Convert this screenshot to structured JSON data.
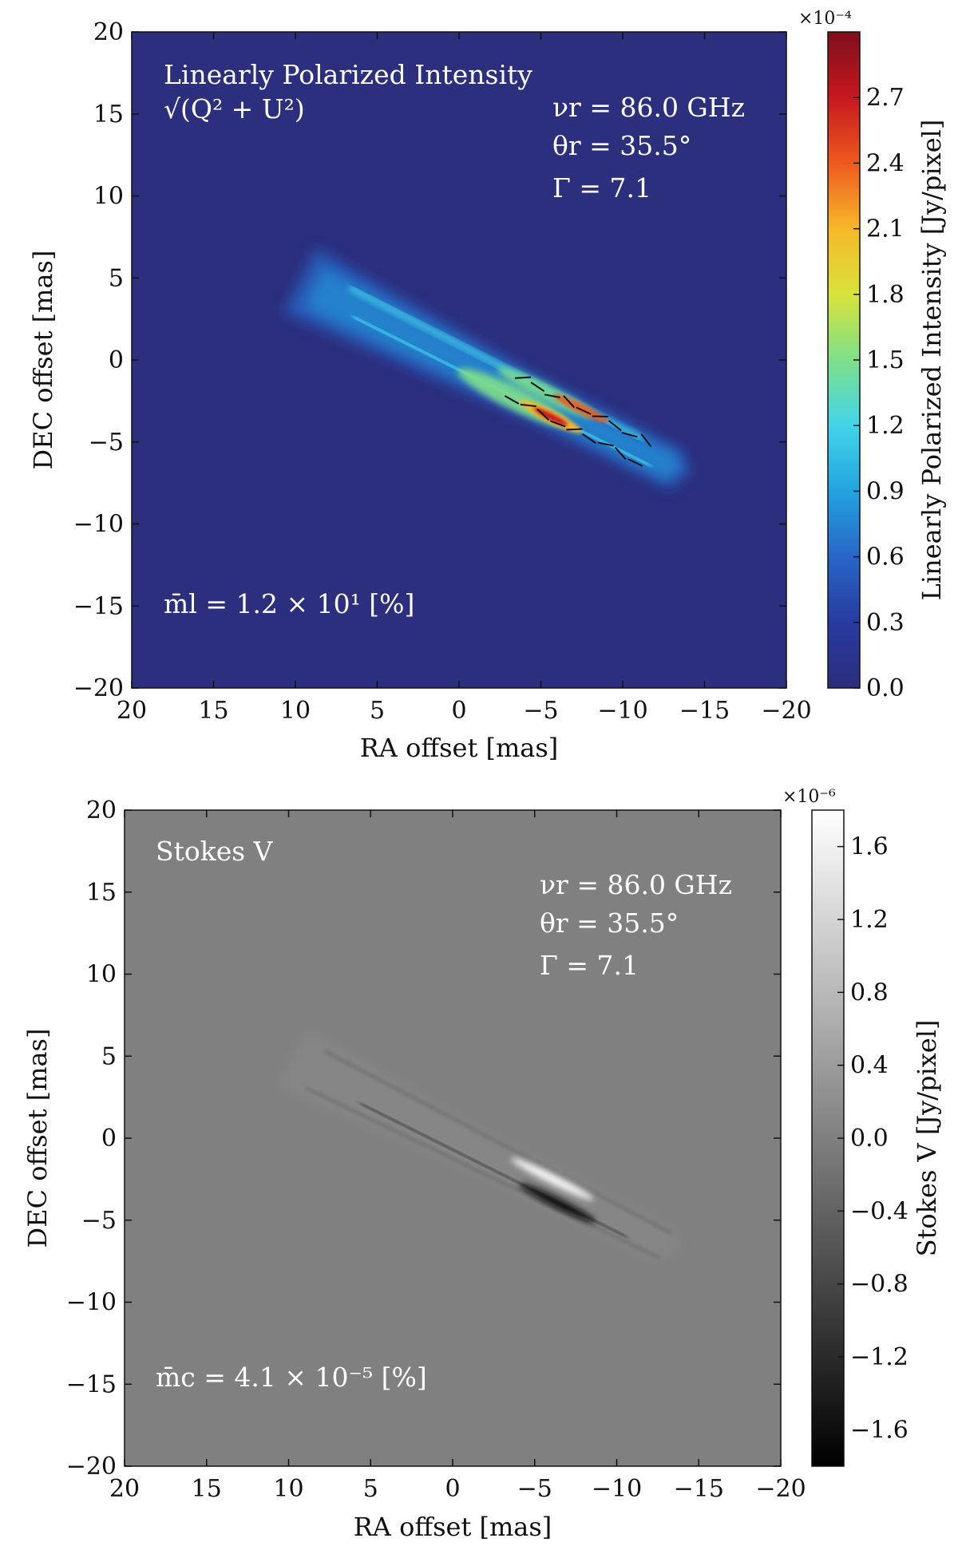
{
  "chart_data": [
    {
      "type": "heatmap",
      "title": "Linearly Polarized Intensity",
      "formula": "√(Q² + U²)",
      "xlabel": "RA offset [mas]",
      "ylabel": "DEC offset [mas]",
      "xlim": [
        20,
        -20
      ],
      "ylim": [
        -20,
        20
      ],
      "x_ticks": [
        "20",
        "15",
        "10",
        "5",
        "0",
        "−5",
        "−10",
        "−15",
        "−20"
      ],
      "y_ticks": [
        "20",
        "15",
        "10",
        "5",
        "0",
        "−5",
        "−10",
        "−15",
        "−20"
      ],
      "annotations": {
        "nu": "νr = 86.0 GHz",
        "theta": "θr = 35.5°",
        "gamma": "Γ = 7.1",
        "mean_frac": "m̄l =  1.2 × 10¹ [%]"
      },
      "colorbar": {
        "label": "Linearly Polarized Intensity [Jy/pixel]",
        "multiplier": "×10⁻⁴",
        "range": [
          0.0,
          3.0
        ],
        "ticks": [
          "0.0",
          "0.3",
          "0.6",
          "0.9",
          "1.2",
          "1.5",
          "1.8",
          "2.1",
          "2.4",
          "2.7"
        ],
        "colormap": "jet",
        "colors": [
          "#2c2e7c",
          "#283b9f",
          "#2866c8",
          "#24a3e0",
          "#42d4ea",
          "#7fdf8a",
          "#d8e33a",
          "#f7b82a",
          "#ee5a1f",
          "#c6181f",
          "#7e0f1c"
        ]
      },
      "background_color": "#2c2f7e",
      "jet_path": [
        [
          8,
          4
        ],
        [
          -13,
          -6.5
        ]
      ]
    },
    {
      "type": "heatmap",
      "title": "Stokes V",
      "xlabel": "RA offset [mas]",
      "ylabel": "DEC offset [mas]",
      "xlim": [
        20,
        -20
      ],
      "ylim": [
        -20,
        20
      ],
      "x_ticks": [
        "20",
        "15",
        "10",
        "5",
        "0",
        "−5",
        "−10",
        "−15",
        "−20"
      ],
      "y_ticks": [
        "20",
        "15",
        "10",
        "5",
        "0",
        "−5",
        "−10",
        "−15",
        "−20"
      ],
      "annotations": {
        "nu": "νr = 86.0 GHz",
        "theta": "θr = 35.5°",
        "gamma": "Γ = 7.1",
        "mean_frac": "m̄c =  4.1 × 10⁻⁵ [%]"
      },
      "colorbar": {
        "label": "Stokes V [Jy/pixel]",
        "multiplier": "×10⁻⁶",
        "range": [
          -1.8,
          1.8
        ],
        "ticks": [
          "−1.6",
          "−1.2",
          "−0.8",
          "−0.4",
          "0.0",
          "0.4",
          "0.8",
          "1.2",
          "1.6"
        ],
        "colormap": "gray",
        "colors": [
          "#000000",
          "#ffffff"
        ]
      },
      "background_color": "#808080",
      "jet_path": [
        [
          8,
          4
        ],
        [
          -13,
          -6.5
        ]
      ]
    }
  ]
}
